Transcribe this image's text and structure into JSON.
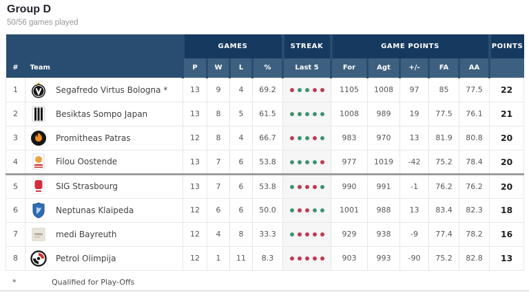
{
  "page": {
    "title": "Group D",
    "subtitle": "50/56 games played",
    "footnote": {
      "symbol": "*",
      "text": "Qualified for Play-Offs"
    }
  },
  "colors": {
    "header_base": "#294d70",
    "header_group_block": "#16395f",
    "header_cell_block": "#3e6080",
    "win_dot_green": "#3e9470",
    "loss_dot_red": "#c23a52",
    "playoff_cutoff_line": "#9c9c9c"
  },
  "table": {
    "group_headers": {
      "games": "GAMES",
      "streak": "STREAK",
      "game_points": "GAME POINTS",
      "points": "POINTS"
    },
    "columns": {
      "rank": "#",
      "team": "Team",
      "played": "P",
      "wins": "W",
      "losses": "L",
      "pct": "%",
      "last5": "Last 5",
      "for": "For",
      "against": "Agt",
      "diff": "+/-",
      "fa": "FA",
      "aa": "AA"
    },
    "playoff_cutoff_after_rank": 4,
    "rows": [
      {
        "rank": "1",
        "team": "Segafredo Virtus Bologna *",
        "logo": "virtus-bologna-logo",
        "played": "13",
        "wins": "9",
        "losses": "4",
        "pct": "69.2",
        "streak": [
          "L",
          "W",
          "W",
          "L",
          "L"
        ],
        "for": "1105",
        "against": "1008",
        "diff": "97",
        "fa": "85",
        "aa": "77.5",
        "points": "22"
      },
      {
        "rank": "2",
        "team": "Besiktas Sompo Japan",
        "logo": "besiktas-logo",
        "played": "13",
        "wins": "8",
        "losses": "5",
        "pct": "61.5",
        "streak": [
          "W",
          "W",
          "W",
          "W",
          "W"
        ],
        "for": "1008",
        "against": "989",
        "diff": "19",
        "fa": "77.5",
        "aa": "76.1",
        "points": "21"
      },
      {
        "rank": "3",
        "team": "Promitheas Patras",
        "logo": "promitheas-logo",
        "played": "12",
        "wins": "8",
        "losses": "4",
        "pct": "66.7",
        "streak": [
          "L",
          "W",
          "W",
          "L",
          "W"
        ],
        "for": "983",
        "against": "970",
        "diff": "13",
        "fa": "81.9",
        "aa": "80.8",
        "points": "20"
      },
      {
        "rank": "4",
        "team": "Filou Oostende",
        "logo": "oostende-logo",
        "played": "13",
        "wins": "7",
        "losses": "6",
        "pct": "53.8",
        "streak": [
          "W",
          "W",
          "W",
          "W",
          "L"
        ],
        "for": "977",
        "against": "1019",
        "diff": "-42",
        "fa": "75.2",
        "aa": "78.4",
        "points": "20"
      },
      {
        "rank": "5",
        "team": "SIG Strasbourg",
        "logo": "strasbourg-logo",
        "played": "13",
        "wins": "7",
        "losses": "6",
        "pct": "53.8",
        "streak": [
          "W",
          "L",
          "L",
          "L",
          "W"
        ],
        "for": "990",
        "against": "991",
        "diff": "-1",
        "fa": "76.2",
        "aa": "76.2",
        "points": "20"
      },
      {
        "rank": "6",
        "team": "Neptunas Klaipeda",
        "logo": "neptunas-logo",
        "played": "12",
        "wins": "6",
        "losses": "6",
        "pct": "50.0",
        "streak": [
          "W",
          "L",
          "L",
          "W",
          "W"
        ],
        "for": "1001",
        "against": "988",
        "diff": "13",
        "fa": "83.4",
        "aa": "82.3",
        "points": "18"
      },
      {
        "rank": "7",
        "team": "medi Bayreuth",
        "logo": "bayreuth-logo",
        "played": "12",
        "wins": "4",
        "losses": "8",
        "pct": "33.3",
        "streak": [
          "W",
          "L",
          "L",
          "L",
          "L"
        ],
        "for": "929",
        "against": "938",
        "diff": "-9",
        "fa": "77.4",
        "aa": "78.2",
        "points": "16"
      },
      {
        "rank": "8",
        "team": "Petrol Olimpija",
        "logo": "olimpija-logo",
        "played": "12",
        "wins": "1",
        "losses": "11",
        "pct": "8.3",
        "streak": [
          "L",
          "L",
          "L",
          "L",
          "L"
        ],
        "for": "903",
        "against": "993",
        "diff": "-90",
        "fa": "75.2",
        "aa": "82.8",
        "points": "13"
      }
    ]
  }
}
